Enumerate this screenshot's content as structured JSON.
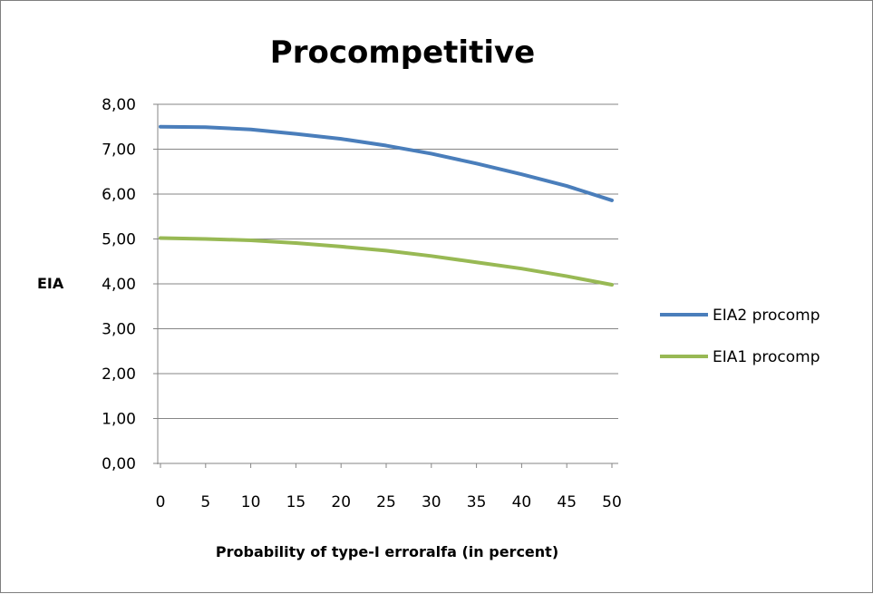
{
  "chart_data": {
    "type": "line",
    "title": "Procompetitive",
    "xlabel": "Probability of type-I erroralfa (in percent)",
    "ylabel": "EIA",
    "x": [
      0,
      5,
      10,
      15,
      20,
      25,
      30,
      35,
      40,
      45,
      50
    ],
    "x_ticks": [
      "0",
      "5",
      "10",
      "15",
      "20",
      "25",
      "30",
      "35",
      "40",
      "45",
      "50"
    ],
    "y_ticks": [
      "0,00",
      "1,00",
      "2,00",
      "3,00",
      "4,00",
      "5,00",
      "6,00",
      "7,00",
      "8,00"
    ],
    "ylim": [
      0,
      8
    ],
    "xlim": [
      0,
      50
    ],
    "grid": "horizontal",
    "legend_position": "right",
    "series": [
      {
        "name": "EIA2 procomp",
        "color": "#4a7ebb",
        "values": [
          7.5,
          7.49,
          7.44,
          7.34,
          7.23,
          7.08,
          6.9,
          6.68,
          6.44,
          6.18,
          5.86
        ]
      },
      {
        "name": "EIA1 procomp",
        "color": "#98b954",
        "values": [
          5.02,
          5.0,
          4.97,
          4.91,
          4.83,
          4.74,
          4.62,
          4.48,
          4.34,
          4.17,
          3.98
        ]
      }
    ]
  }
}
